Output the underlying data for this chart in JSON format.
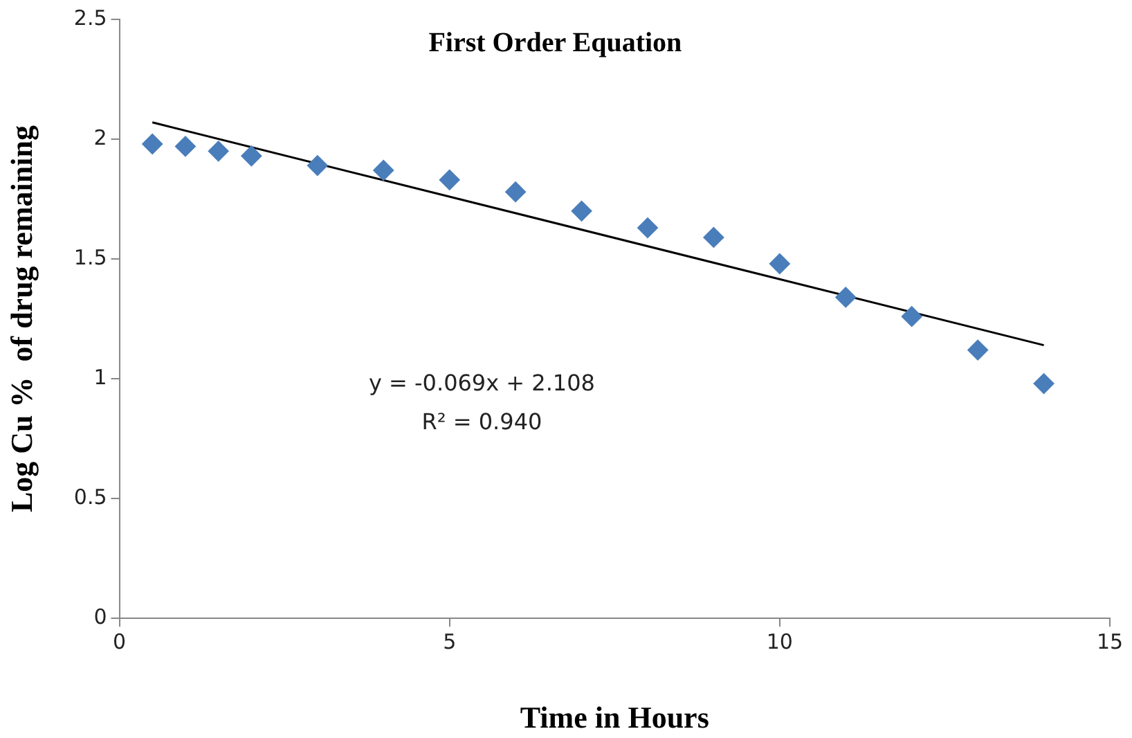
{
  "chart_data": {
    "type": "scatter",
    "title": "First Order Equation",
    "xlabel": "Time in Hours",
    "ylabel": "Log Cu %  of drug remaining",
    "x": [
      0.5,
      1,
      1.5,
      2,
      3,
      4,
      5,
      6,
      7,
      8,
      9,
      10,
      11,
      12,
      13,
      14
    ],
    "series": [
      {
        "type": "scatter",
        "marker": "diamond",
        "color": "#4a7ebb",
        "values": [
          1.98,
          1.97,
          1.95,
          1.93,
          1.89,
          1.87,
          1.83,
          1.78,
          1.7,
          1.63,
          1.59,
          1.48,
          1.34,
          1.26,
          1.12,
          0.98
        ]
      },
      {
        "type": "line",
        "marker": "none",
        "color": "#000000",
        "x": [
          0.5,
          14
        ],
        "values": [
          2.07,
          1.14
        ]
      }
    ],
    "xlim": [
      0,
      15
    ],
    "xticks": [
      0,
      5,
      10,
      15
    ],
    "ylim": [
      0,
      2.5
    ],
    "yticks": [
      0,
      0.5,
      1,
      1.5,
      2,
      2.5
    ],
    "grid": false,
    "legend": false,
    "annotations": [
      "y = -0.069x + 2.108",
      "R² = 0.940"
    ]
  }
}
